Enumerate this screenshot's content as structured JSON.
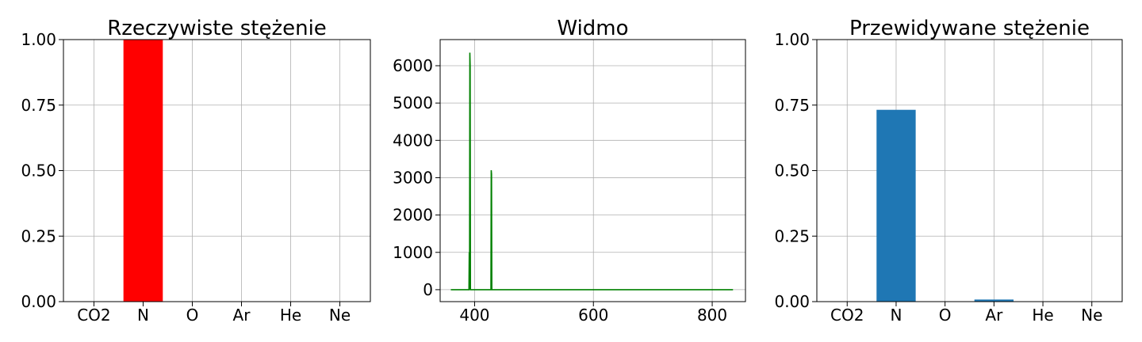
{
  "chart_data": [
    {
      "type": "bar",
      "title": "Rzeczywiste stężenie",
      "categories": [
        "CO2",
        "N",
        "O",
        "Ar",
        "He",
        "Ne"
      ],
      "values": [
        0,
        1,
        0,
        0,
        0,
        0
      ],
      "ylim": [
        0,
        1
      ],
      "yticks": [
        "0.00",
        "0.25",
        "0.50",
        "0.75",
        "1.00"
      ],
      "ytick_values": [
        0,
        0.25,
        0.5,
        0.75,
        1.0
      ],
      "color": "#ff0000",
      "grid": true
    },
    {
      "type": "line",
      "title": "Widmo",
      "xlim": [
        342,
        856
      ],
      "ylim": [
        -320,
        6700
      ],
      "xticks": [
        "400",
        "600",
        "800"
      ],
      "xtick_values": [
        400,
        600,
        800
      ],
      "yticks": [
        "0",
        "1000",
        "2000",
        "3000",
        "4000",
        "5000",
        "6000"
      ],
      "ytick_values": [
        0,
        1000,
        2000,
        3000,
        4000,
        5000,
        6000
      ],
      "color": "#008000",
      "grid": true,
      "x": [
        360,
        390.5,
        391,
        391.5,
        392,
        392.5,
        393,
        427.5,
        428,
        428.5,
        429,
        835
      ],
      "y": [
        0,
        0,
        1000,
        0,
        6350,
        6000,
        0,
        0,
        3200,
        3100,
        0,
        0
      ]
    },
    {
      "type": "bar",
      "title": "Przewidywane stężenie",
      "categories": [
        "CO2",
        "N",
        "O",
        "Ar",
        "He",
        "Ne"
      ],
      "values": [
        0,
        0.732,
        0,
        0.008,
        0,
        0
      ],
      "ylim": [
        0,
        1
      ],
      "yticks": [
        "0.00",
        "0.25",
        "0.50",
        "0.75",
        "1.00"
      ],
      "ytick_values": [
        0,
        0.25,
        0.5,
        0.75,
        1.0
      ],
      "color": "#1f77b4",
      "grid": true
    }
  ]
}
